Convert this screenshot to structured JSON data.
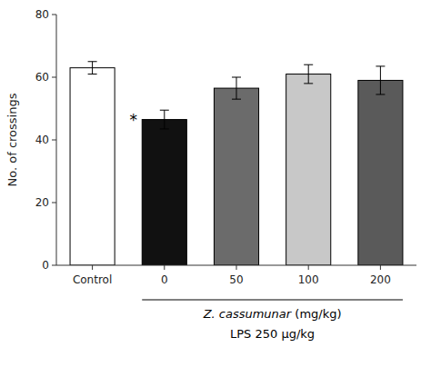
{
  "chart_data": {
    "type": "bar",
    "categories": [
      "Control",
      "0",
      "50",
      "100",
      "200"
    ],
    "values": [
      63.0,
      46.5,
      56.5,
      61.0,
      59.0
    ],
    "errors": [
      2.0,
      3.0,
      3.5,
      3.0,
      4.5
    ],
    "colors": [
      "#ffffff",
      "#111111",
      "#6b6b6b",
      "#c8c8c8",
      "#5a5a5a"
    ],
    "ylabel": "No. of crossings",
    "ylim": [
      0,
      80
    ],
    "yticks": [
      0,
      20,
      40,
      60,
      80
    ],
    "grid": false,
    "annotations": [
      {
        "text": "*",
        "category": "0"
      },
      {
        "text": "Z. cassumunar (mg/kg)",
        "categories": [
          "0",
          "200"
        ]
      },
      {
        "text": "LPS 250 µg/kg",
        "categories": [
          "0",
          "200"
        ]
      }
    ]
  }
}
